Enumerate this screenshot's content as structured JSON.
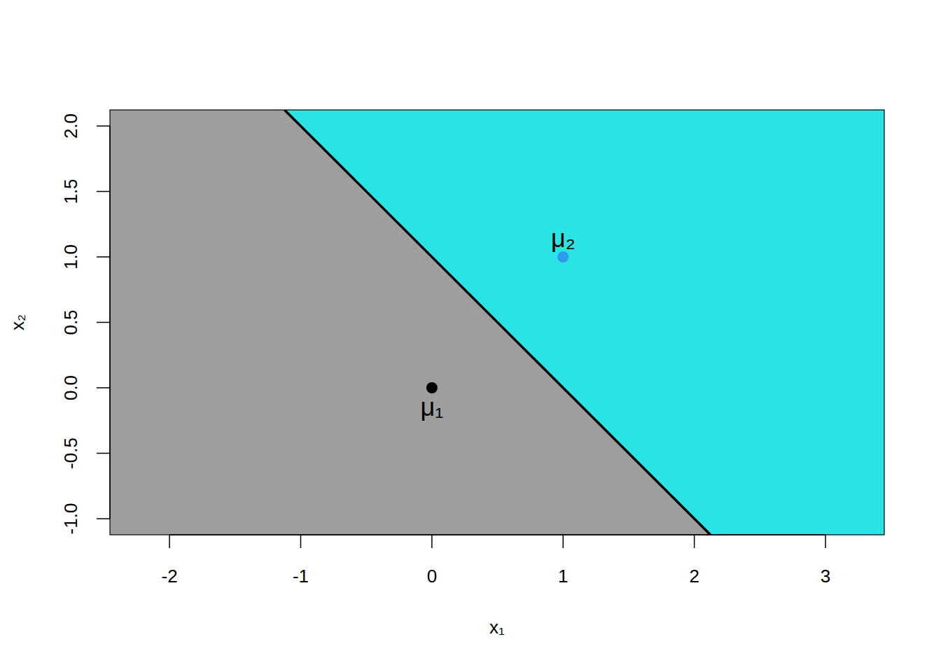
{
  "chart_data": {
    "type": "scatter",
    "x_label": "x₁",
    "y_label": "x₂",
    "xlim": [
      -2.454,
      3.448
    ],
    "ylim": [
      -1.123,
      2.123
    ],
    "xticks": [
      -2,
      -1,
      0,
      1,
      2,
      3
    ],
    "yticks": [
      {
        "value": -1,
        "label": "-1.0"
      },
      -0.5,
      {
        "value": 0,
        "label": "0.0"
      },
      0.5,
      {
        "value": 1,
        "label": "1.0"
      },
      1.5,
      {
        "value": 2,
        "label": "2.0"
      }
    ],
    "regions": [
      {
        "color": "#9e9e9e",
        "x": [
          -2.454,
          -1.123,
          2.123,
          -2.454
        ],
        "y": [
          2.123,
          2.123,
          -1.123,
          -1.123
        ]
      },
      {
        "color": "#2ae3e4",
        "x": [
          -1.123,
          3.448,
          3.448,
          2.123
        ],
        "y": [
          2.123,
          2.123,
          -1.123,
          -1.123
        ]
      }
    ],
    "boundary": {
      "type": "line",
      "color": "#000000",
      "x": [
        -1.123,
        2.123
      ],
      "y": [
        2.123,
        -1.123
      ]
    },
    "series": [
      {
        "name": "μ₁",
        "color": "#000000",
        "marker": "circle",
        "x": [
          0
        ],
        "y": [
          0
        ]
      },
      {
        "name": "μ₂",
        "color": "#2e9bea",
        "marker": "circle",
        "x": [
          1
        ],
        "y": [
          1
        ]
      }
    ]
  }
}
